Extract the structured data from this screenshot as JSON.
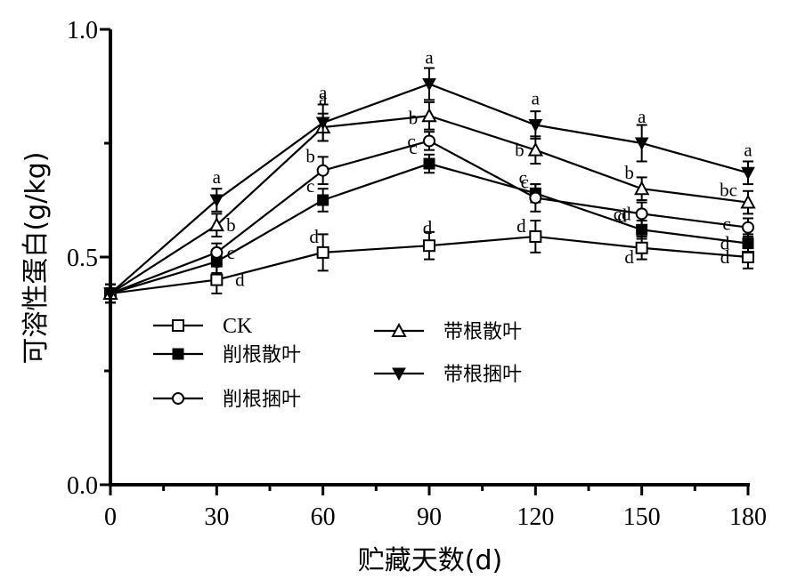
{
  "chart_data": {
    "type": "line",
    "xlabel": "贮藏天数(d)",
    "ylabel": "可溶性蛋白(g/kg)",
    "x": [
      0,
      30,
      60,
      90,
      120,
      150,
      180
    ],
    "x_ticks": [
      "0",
      "30",
      "60",
      "90",
      "120",
      "150",
      "180"
    ],
    "y_ticks": [
      "0.0",
      "0.5",
      "1.0"
    ],
    "xlim": [
      0,
      180
    ],
    "ylim": [
      0,
      1.0
    ],
    "grid": false,
    "legend_position": "inside-left",
    "series": [
      {
        "name": "CK",
        "marker": "open-square",
        "values": [
          0.42,
          0.45,
          0.51,
          0.525,
          0.545,
          0.52,
          0.5
        ],
        "errors": [
          0.02,
          0.03,
          0.04,
          0.03,
          0.035,
          0.025,
          0.025
        ],
        "labels": [
          "",
          "d",
          "d",
          "d",
          "d",
          "d",
          "d"
        ]
      },
      {
        "name": "削根散叶",
        "marker": "filled-square",
        "values": [
          0.42,
          0.49,
          0.625,
          0.705,
          0.64,
          0.56,
          0.53
        ],
        "errors": [
          0.02,
          0.025,
          0.025,
          0.02,
          0.02,
          0.02,
          0.02
        ],
        "labels": [
          "",
          "c",
          "c",
          "c",
          "c",
          "d",
          "d"
        ]
      },
      {
        "name": "削根捆叶",
        "marker": "open-circle",
        "values": [
          0.42,
          0.51,
          0.69,
          0.755,
          0.63,
          0.595,
          0.565
        ],
        "errors": [
          0.02,
          0.02,
          0.03,
          0.02,
          0.03,
          0.025,
          0.02
        ],
        "labels": [
          "",
          "c",
          "b",
          "c",
          "c",
          "cd",
          "c"
        ]
      },
      {
        "name": "带根散叶",
        "marker": "open-triangle-up",
        "values": [
          0.42,
          0.57,
          0.785,
          0.81,
          0.735,
          0.65,
          0.62
        ],
        "errors": [
          0.02,
          0.025,
          0.03,
          0.03,
          0.03,
          0.025,
          0.025
        ],
        "labels": [
          "",
          "b",
          "a",
          "b",
          "b",
          "b",
          "bc"
        ]
      },
      {
        "name": "带根捆叶",
        "marker": "filled-triangle-down",
        "values": [
          0.42,
          0.625,
          0.795,
          0.88,
          0.79,
          0.75,
          0.685
        ],
        "errors": [
          0.02,
          0.025,
          0.04,
          0.035,
          0.03,
          0.04,
          0.025
        ],
        "labels": [
          "",
          "a",
          "a",
          "a",
          "a",
          "a",
          "a"
        ]
      }
    ]
  }
}
